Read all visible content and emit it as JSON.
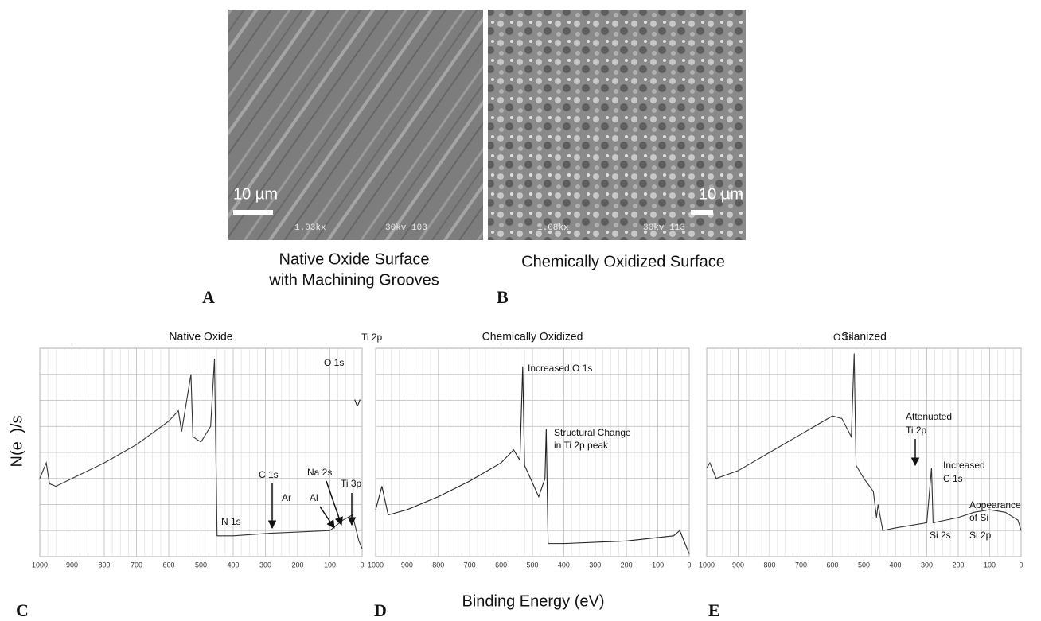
{
  "images": [
    {
      "label": "A",
      "caption": [
        "Native Oxide Surface",
        "with Machining Grooves"
      ],
      "scale_bar": "10 µm",
      "magnification": "1.03kx",
      "voltage": "30kv 103"
    },
    {
      "label": "B",
      "caption": [
        "Chemically Oxidized Surface"
      ],
      "scale_bar": "10 µm",
      "magnification": "1.08kx",
      "voltage": "30kv 113"
    }
  ],
  "y_label": "N(e⁻)/s",
  "x_label": "Binding Energy (eV)",
  "chart_data": [
    {
      "type": "line",
      "title": "Native Oxide",
      "label": "C",
      "x": [
        1000,
        980,
        970,
        950,
        900,
        800,
        700,
        600,
        570,
        560,
        531,
        525,
        500,
        470,
        458,
        450,
        400,
        285,
        100,
        60,
        30,
        10,
        0
      ],
      "series": [
        {
          "color": "#333333",
          "values": [
            3.0,
            3.6,
            2.8,
            2.7,
            3.0,
            3.6,
            4.3,
            5.2,
            5.6,
            4.8,
            7.0,
            4.6,
            4.4,
            5.0,
            7.6,
            0.8,
            0.8,
            0.9,
            1.0,
            1.4,
            1.6,
            0.6,
            0.3
          ]
        }
      ],
      "xlim": [
        1000,
        0
      ],
      "xticks": [
        1000,
        900,
        800,
        700,
        600,
        500,
        400,
        300,
        200,
        100,
        0
      ],
      "ylim": [
        0,
        8
      ],
      "grid": true,
      "annotations": [
        "Ti 2p",
        "O 1s",
        "V",
        "N 1s",
        "C 1s",
        "Ar",
        "Al",
        "Na 2s",
        "Ti 3p"
      ]
    },
    {
      "type": "line",
      "title": "Chemically Oxidized",
      "label": "D",
      "x": [
        1000,
        980,
        960,
        900,
        800,
        700,
        600,
        560,
        540,
        531,
        525,
        480,
        460,
        456,
        450,
        400,
        200,
        50,
        30,
        0
      ],
      "series": [
        {
          "color": "#222222",
          "values": [
            1.8,
            2.7,
            1.6,
            1.8,
            2.3,
            2.9,
            3.6,
            4.1,
            3.7,
            7.3,
            3.5,
            2.3,
            3.0,
            4.9,
            0.5,
            0.5,
            0.6,
            0.8,
            1.0,
            0.1
          ]
        }
      ],
      "xlim": [
        1000,
        0
      ],
      "xticks": [
        1000,
        900,
        800,
        700,
        600,
        500,
        400,
        300,
        200,
        100,
        0
      ],
      "ylim": [
        0,
        8
      ],
      "grid": true,
      "annotations": [
        "Increased O 1s",
        "Structural Change",
        "in Ti 2p peak"
      ]
    },
    {
      "type": "line",
      "title": "Silanized",
      "label": "E",
      "x": [
        1000,
        990,
        970,
        900,
        800,
        700,
        600,
        570,
        540,
        531,
        525,
        500,
        470,
        460,
        455,
        440,
        400,
        300,
        285,
        280,
        200,
        150,
        100,
        50,
        10,
        0
      ],
      "series": [
        {
          "color": "#333333",
          "values": [
            3.4,
            3.6,
            3.0,
            3.3,
            4.0,
            4.7,
            5.4,
            5.3,
            4.6,
            7.8,
            3.5,
            3.0,
            2.5,
            1.5,
            2.0,
            1.0,
            1.1,
            1.3,
            3.4,
            1.3,
            1.5,
            1.7,
            1.8,
            1.7,
            1.4,
            1.0
          ]
        }
      ],
      "xlim": [
        1000,
        0
      ],
      "xticks": [
        1000,
        900,
        800,
        700,
        600,
        500,
        400,
        300,
        200,
        100,
        0
      ],
      "ylim": [
        0,
        8
      ],
      "grid": true,
      "annotations": [
        "O 1s",
        "Attenuated",
        "Ti 2p",
        "Increased",
        "C 1s",
        "Appearance",
        "of Si",
        "Si 2s",
        "Si 2p"
      ]
    }
  ]
}
